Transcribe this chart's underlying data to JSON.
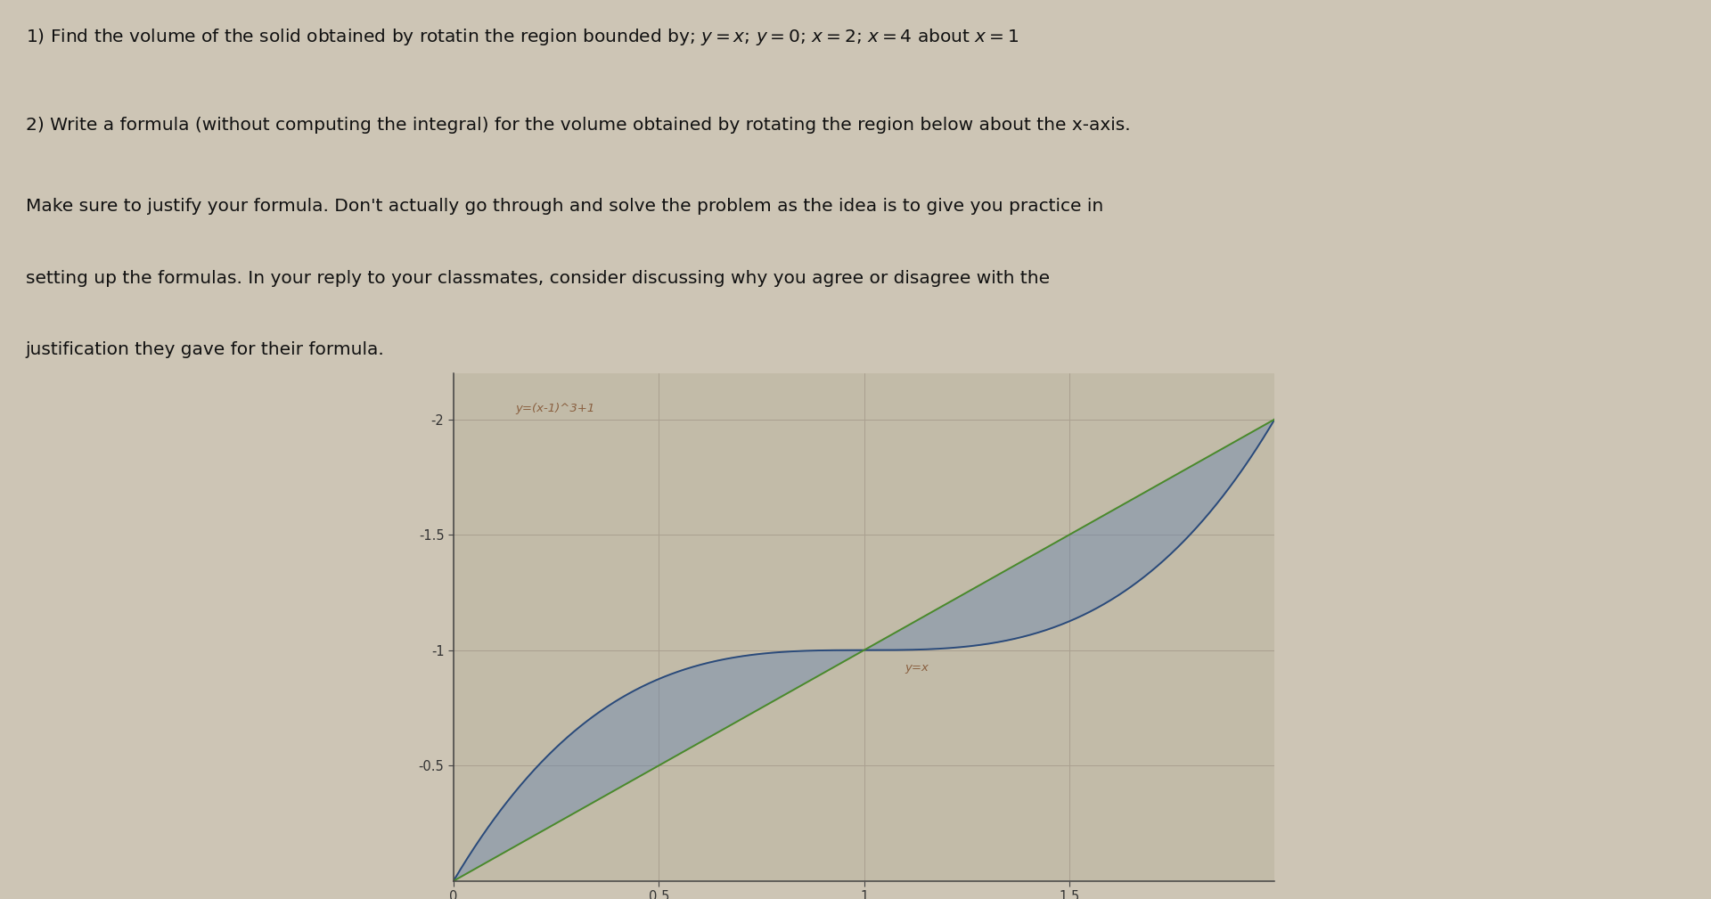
{
  "bg_color": "#cdc5b5",
  "graph_bg_color": "#c2bba8",
  "grid_color": "#aaa090",
  "text_color": "#111111",
  "line1_color": "#2a4a7a",
  "line2_color": "#4a8a2a",
  "fill_color": "#6080b0",
  "fill_alpha": 0.4,
  "label1_color": "#8a6040",
  "label2_color": "#8a6040",
  "title1": "1) Find the volume of the solid obtained by rotatin the region bounded by; $y = x$; $y = 0$; $x = 2$; $x = 4$ about $x = 1$",
  "title2_line1": "2) Write a formula (without computing the integral) for the volume obtained by rotating the region below about the x-axis.",
  "title2_line2": "Make sure to justify your formula. Don't actually go through and solve the problem as the idea is to give you practice in",
  "title2_line3": "setting up the formulas. In your reply to your classmates, consider discussing why you agree or disagree with the",
  "title2_line4": "justification they gave for their formula.",
  "label1": "y=(x-1)^3+1",
  "label2": "y=x",
  "xlim": [
    0,
    2.0
  ],
  "ylim": [
    0,
    2.2
  ],
  "figsize": [
    19.2,
    10.09
  ],
  "dpi": 100
}
